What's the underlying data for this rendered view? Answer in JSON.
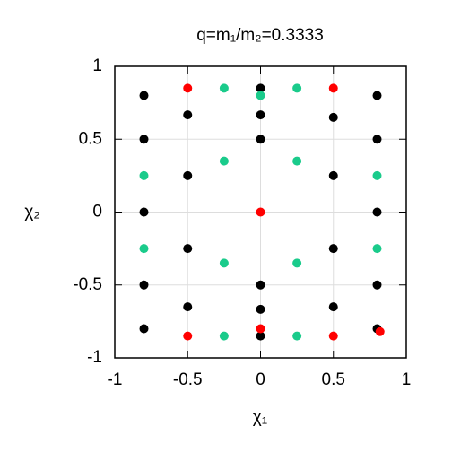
{
  "chart_data": {
    "type": "scatter",
    "title": "q=m₁/m₂=0.3333",
    "xlabel": "χ₁",
    "ylabel": "χ₂",
    "xlim": [
      -1,
      1
    ],
    "ylim": [
      -1,
      1
    ],
    "xticks": [
      -1,
      -0.5,
      0,
      0.5,
      1
    ],
    "yticks": [
      -1,
      -0.5,
      0,
      0.5,
      1
    ],
    "grid": true,
    "series": [
      {
        "color": "#000000",
        "x": [
          -0.8,
          -0.5,
          -0.8,
          -0.5,
          -0.8,
          -0.5,
          -0.8,
          -0.5,
          -0.8,
          0,
          0,
          0,
          0,
          0,
          0,
          0.5,
          0.5,
          0.5,
          0.5,
          0.8,
          0.8,
          0.8,
          0.8,
          0.8
        ],
        "y": [
          0.8,
          0.667,
          0.5,
          0.25,
          0,
          -0.25,
          -0.5,
          -0.65,
          -0.8,
          0.85,
          0.667,
          0.5,
          -0.5,
          -0.667,
          -0.85,
          0.65,
          0.25,
          -0.25,
          -0.65,
          0.8,
          0.5,
          0,
          -0.5,
          -0.8
        ]
      },
      {
        "color": "#1acb8b",
        "x": [
          -0.25,
          0.25,
          0,
          -0.8,
          0.8,
          -0.25,
          0.25,
          -0.8,
          0.8,
          -0.25,
          0.25,
          -0.25,
          0.25
        ],
        "y": [
          0.85,
          0.85,
          0.8,
          0.25,
          0.25,
          0.35,
          0.35,
          -0.25,
          -0.25,
          -0.35,
          -0.35,
          -0.85,
          -0.85
        ]
      },
      {
        "color": "#ff0000",
        "x": [
          -0.5,
          0.5,
          0,
          0,
          -0.5,
          0.5,
          0.82
        ],
        "y": [
          0.85,
          0.85,
          0,
          -0.8,
          -0.85,
          -0.85,
          -0.82
        ]
      }
    ]
  }
}
